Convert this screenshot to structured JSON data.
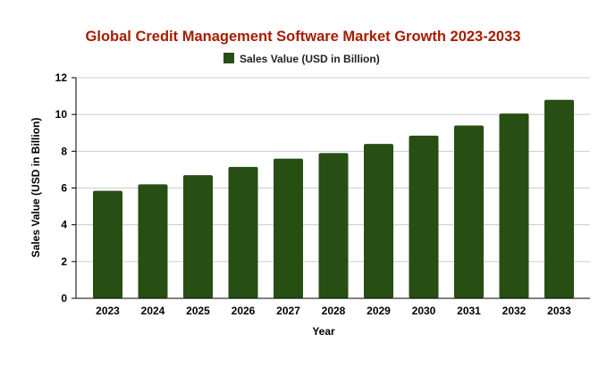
{
  "chart_data": {
    "type": "bar",
    "title": "Global Credit Management Software Market Growth 2023-2033",
    "xlabel": "Year",
    "ylabel": "Sales Value (USD in Billion)",
    "categories": [
      "2023",
      "2024",
      "2025",
      "2026",
      "2027",
      "2028",
      "2029",
      "2030",
      "2031",
      "2032",
      "2033"
    ],
    "series": [
      {
        "name": "Sales Value (USD in Billion)",
        "values": [
          5.85,
          6.2,
          6.7,
          7.15,
          7.6,
          7.9,
          8.4,
          8.85,
          9.4,
          10.05,
          10.8
        ]
      }
    ],
    "ylim": [
      0,
      12
    ],
    "yticks": [
      0,
      2,
      4,
      6,
      8,
      10,
      12
    ],
    "grid": true,
    "legend_position": "top",
    "colors": {
      "bar": "#274e13",
      "title": "#a61c00",
      "grid": "#cccccc",
      "axis": "#000000"
    }
  }
}
